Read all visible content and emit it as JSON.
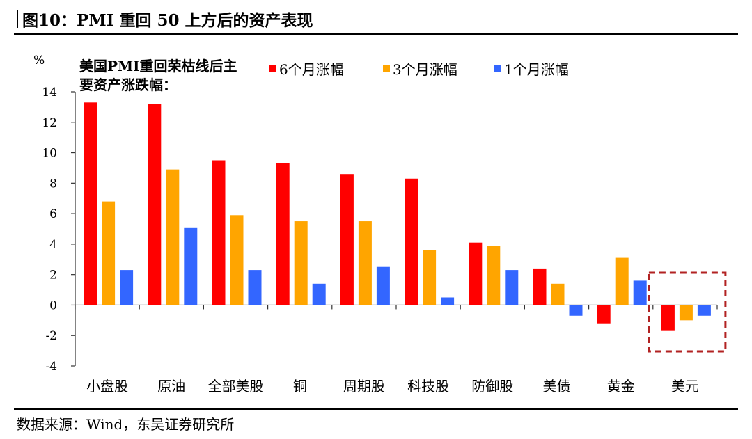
{
  "figure": {
    "title": "图10：PMI 重回 50 上方后的资产表现",
    "source": "数据来源：Wind，东吴证券研究所"
  },
  "chart_data": {
    "type": "bar",
    "title": [
      "美国PMI重回荣枯线后主",
      "要资产涨跌幅："
    ],
    "ylabel": "%",
    "xlabel": "",
    "ylim": [
      -4,
      14
    ],
    "yticks": [
      -4,
      -2,
      0,
      2,
      4,
      6,
      8,
      10,
      12,
      14
    ],
    "grid": false,
    "legend_position": "top",
    "categories": [
      "小盘股",
      "原油",
      "全部美股",
      "铜",
      "周期股",
      "科技股",
      "防御股",
      "美债",
      "黄金",
      "美元"
    ],
    "series": [
      {
        "name": "6个月涨幅",
        "color": "#ff0000",
        "values": [
          13.3,
          13.2,
          9.5,
          9.3,
          8.6,
          8.3,
          4.1,
          2.4,
          -1.2,
          -1.7
        ]
      },
      {
        "name": "3个月涨幅",
        "color": "#ffa500",
        "values": [
          6.8,
          8.9,
          5.9,
          5.5,
          5.5,
          3.6,
          3.9,
          1.4,
          3.1,
          -1.0
        ]
      },
      {
        "name": "1个月涨幅",
        "color": "#3366ff",
        "values": [
          2.3,
          5.1,
          2.3,
          1.4,
          2.5,
          0.5,
          2.3,
          -0.7,
          1.6,
          -0.7
        ]
      }
    ],
    "annotations": [
      {
        "type": "dashed-box",
        "target_category": "美元",
        "color": "#b22222"
      }
    ]
  }
}
